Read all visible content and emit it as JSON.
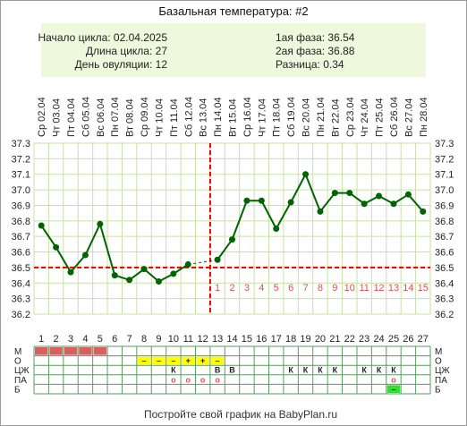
{
  "chart_data": {
    "type": "line",
    "title": "Базальная температура: #2",
    "info": {
      "cycle_start": "Начало цикла: 02.04.2025",
      "cycle_length": "Длина цикла: 27",
      "ovulation_day": "День овуляции: 12",
      "phase1": "1ая фаза: 36.54",
      "phase2": "2ая фаза: 36.88",
      "difference": "Разница: 0.34"
    },
    "dates": [
      "Ср 02.04",
      "Чт 03.04",
      "Пт 04.04",
      "Сб 05.04",
      "Вс 06.04",
      "Пн 07.04",
      "Вт 08.04",
      "Ср 09.04",
      "Чт 10.04",
      "Пт 11.04",
      "Сб 12.04",
      "Вс 13.04",
      "Пн 14.04",
      "Вт 15.04",
      "Ср 16.04",
      "Чт 17.04",
      "Пт 18.04",
      "Сб 19.04",
      "Вс 20.04",
      "Пн 21.04",
      "Вт 22.04",
      "Ср 23.04",
      "Чт 24.04",
      "Пт 25.04",
      "Сб 26.04",
      "Вс 27.04",
      "Пн 28.04"
    ],
    "days": [
      1,
      2,
      3,
      4,
      5,
      6,
      7,
      8,
      9,
      10,
      11,
      12,
      13,
      14,
      15,
      16,
      17,
      18,
      19,
      20,
      21,
      22,
      23,
      24,
      25,
      26,
      27
    ],
    "temperatures": [
      36.77,
      36.63,
      36.47,
      36.58,
      36.78,
      36.45,
      36.42,
      36.49,
      36.41,
      36.46,
      36.52,
      null,
      36.55,
      36.68,
      36.93,
      36.93,
      36.75,
      36.92,
      37.1,
      36.86,
      36.98,
      36.98,
      36.91,
      36.96,
      36.91,
      36.97,
      36.86
    ],
    "y_ticks": [
      "37.3",
      "37.2",
      "37.1",
      "37.0",
      "36.9",
      "36.8",
      "36.7",
      "36.6",
      "36.5",
      "36.4",
      "36.3",
      "36.2"
    ],
    "ylim": [
      36.2,
      37.3
    ],
    "coverline": 36.5,
    "ovulation_after_day": 12,
    "post_ovulation_day_labels": [
      "1",
      "2",
      "3",
      "4",
      "5",
      "6",
      "7",
      "8",
      "9",
      "10",
      "11",
      "12",
      "13",
      "14",
      "15"
    ],
    "line_color": "#006400",
    "coverline_color": "#e00000",
    "post_label_color": "#e05050",
    "grid": true
  },
  "legend_rows": [
    {
      "label": "М",
      "cells": [
        {
          "day": 1,
          "mark": "",
          "fill": "#d46060"
        },
        {
          "day": 2,
          "mark": "",
          "fill": "#d46060"
        },
        {
          "day": 3,
          "mark": "",
          "fill": "#d46060"
        },
        {
          "day": 4,
          "mark": "",
          "fill": "#d46060"
        },
        {
          "day": 5,
          "mark": "",
          "fill": "#d46060"
        }
      ]
    },
    {
      "label": "О",
      "cells": [
        {
          "day": 8,
          "mark": "–",
          "fill": "#ffff00"
        },
        {
          "day": 9,
          "mark": "–",
          "fill": "#ffff00"
        },
        {
          "day": 10,
          "mark": "–",
          "fill": "#ffff00"
        },
        {
          "day": 11,
          "mark": "+",
          "fill": "#ffff00"
        },
        {
          "day": 12,
          "mark": "+",
          "fill": "#ffff00"
        },
        {
          "day": 13,
          "mark": "–",
          "fill": "#ffff00"
        }
      ]
    },
    {
      "label": "ЦЖ",
      "cells": [
        {
          "day": 10,
          "mark": "К"
        },
        {
          "day": 13,
          "mark": "В"
        },
        {
          "day": 14,
          "mark": "В"
        },
        {
          "day": 18,
          "mark": "К"
        },
        {
          "day": 19,
          "mark": "К"
        },
        {
          "day": 20,
          "mark": "К"
        },
        {
          "day": 21,
          "mark": "К"
        },
        {
          "day": 23,
          "mark": "К"
        },
        {
          "day": 24,
          "mark": "К"
        },
        {
          "day": 25,
          "mark": "К"
        }
      ]
    },
    {
      "label": "ПА",
      "cells": [
        {
          "day": 10,
          "mark": "o",
          "color": "#e05050"
        },
        {
          "day": 11,
          "mark": "o",
          "color": "#e05050"
        },
        {
          "day": 12,
          "mark": "o",
          "color": "#e05050"
        },
        {
          "day": 13,
          "mark": "o",
          "color": "#e05050"
        },
        {
          "day": 25,
          "mark": "o",
          "color": "#e05050"
        }
      ]
    },
    {
      "label": "Б",
      "cells": [
        {
          "day": 25,
          "mark": "–",
          "fill": "#33dd33"
        }
      ]
    }
  ],
  "footer": "Постройте свой график на BabyPlan.ru",
  "colors": {
    "info_bg": "#eef8dc",
    "grid": "#c8e0a8",
    "frame": "#9a9a9a",
    "table_line": "#5a9a60",
    "text": "#222222"
  }
}
